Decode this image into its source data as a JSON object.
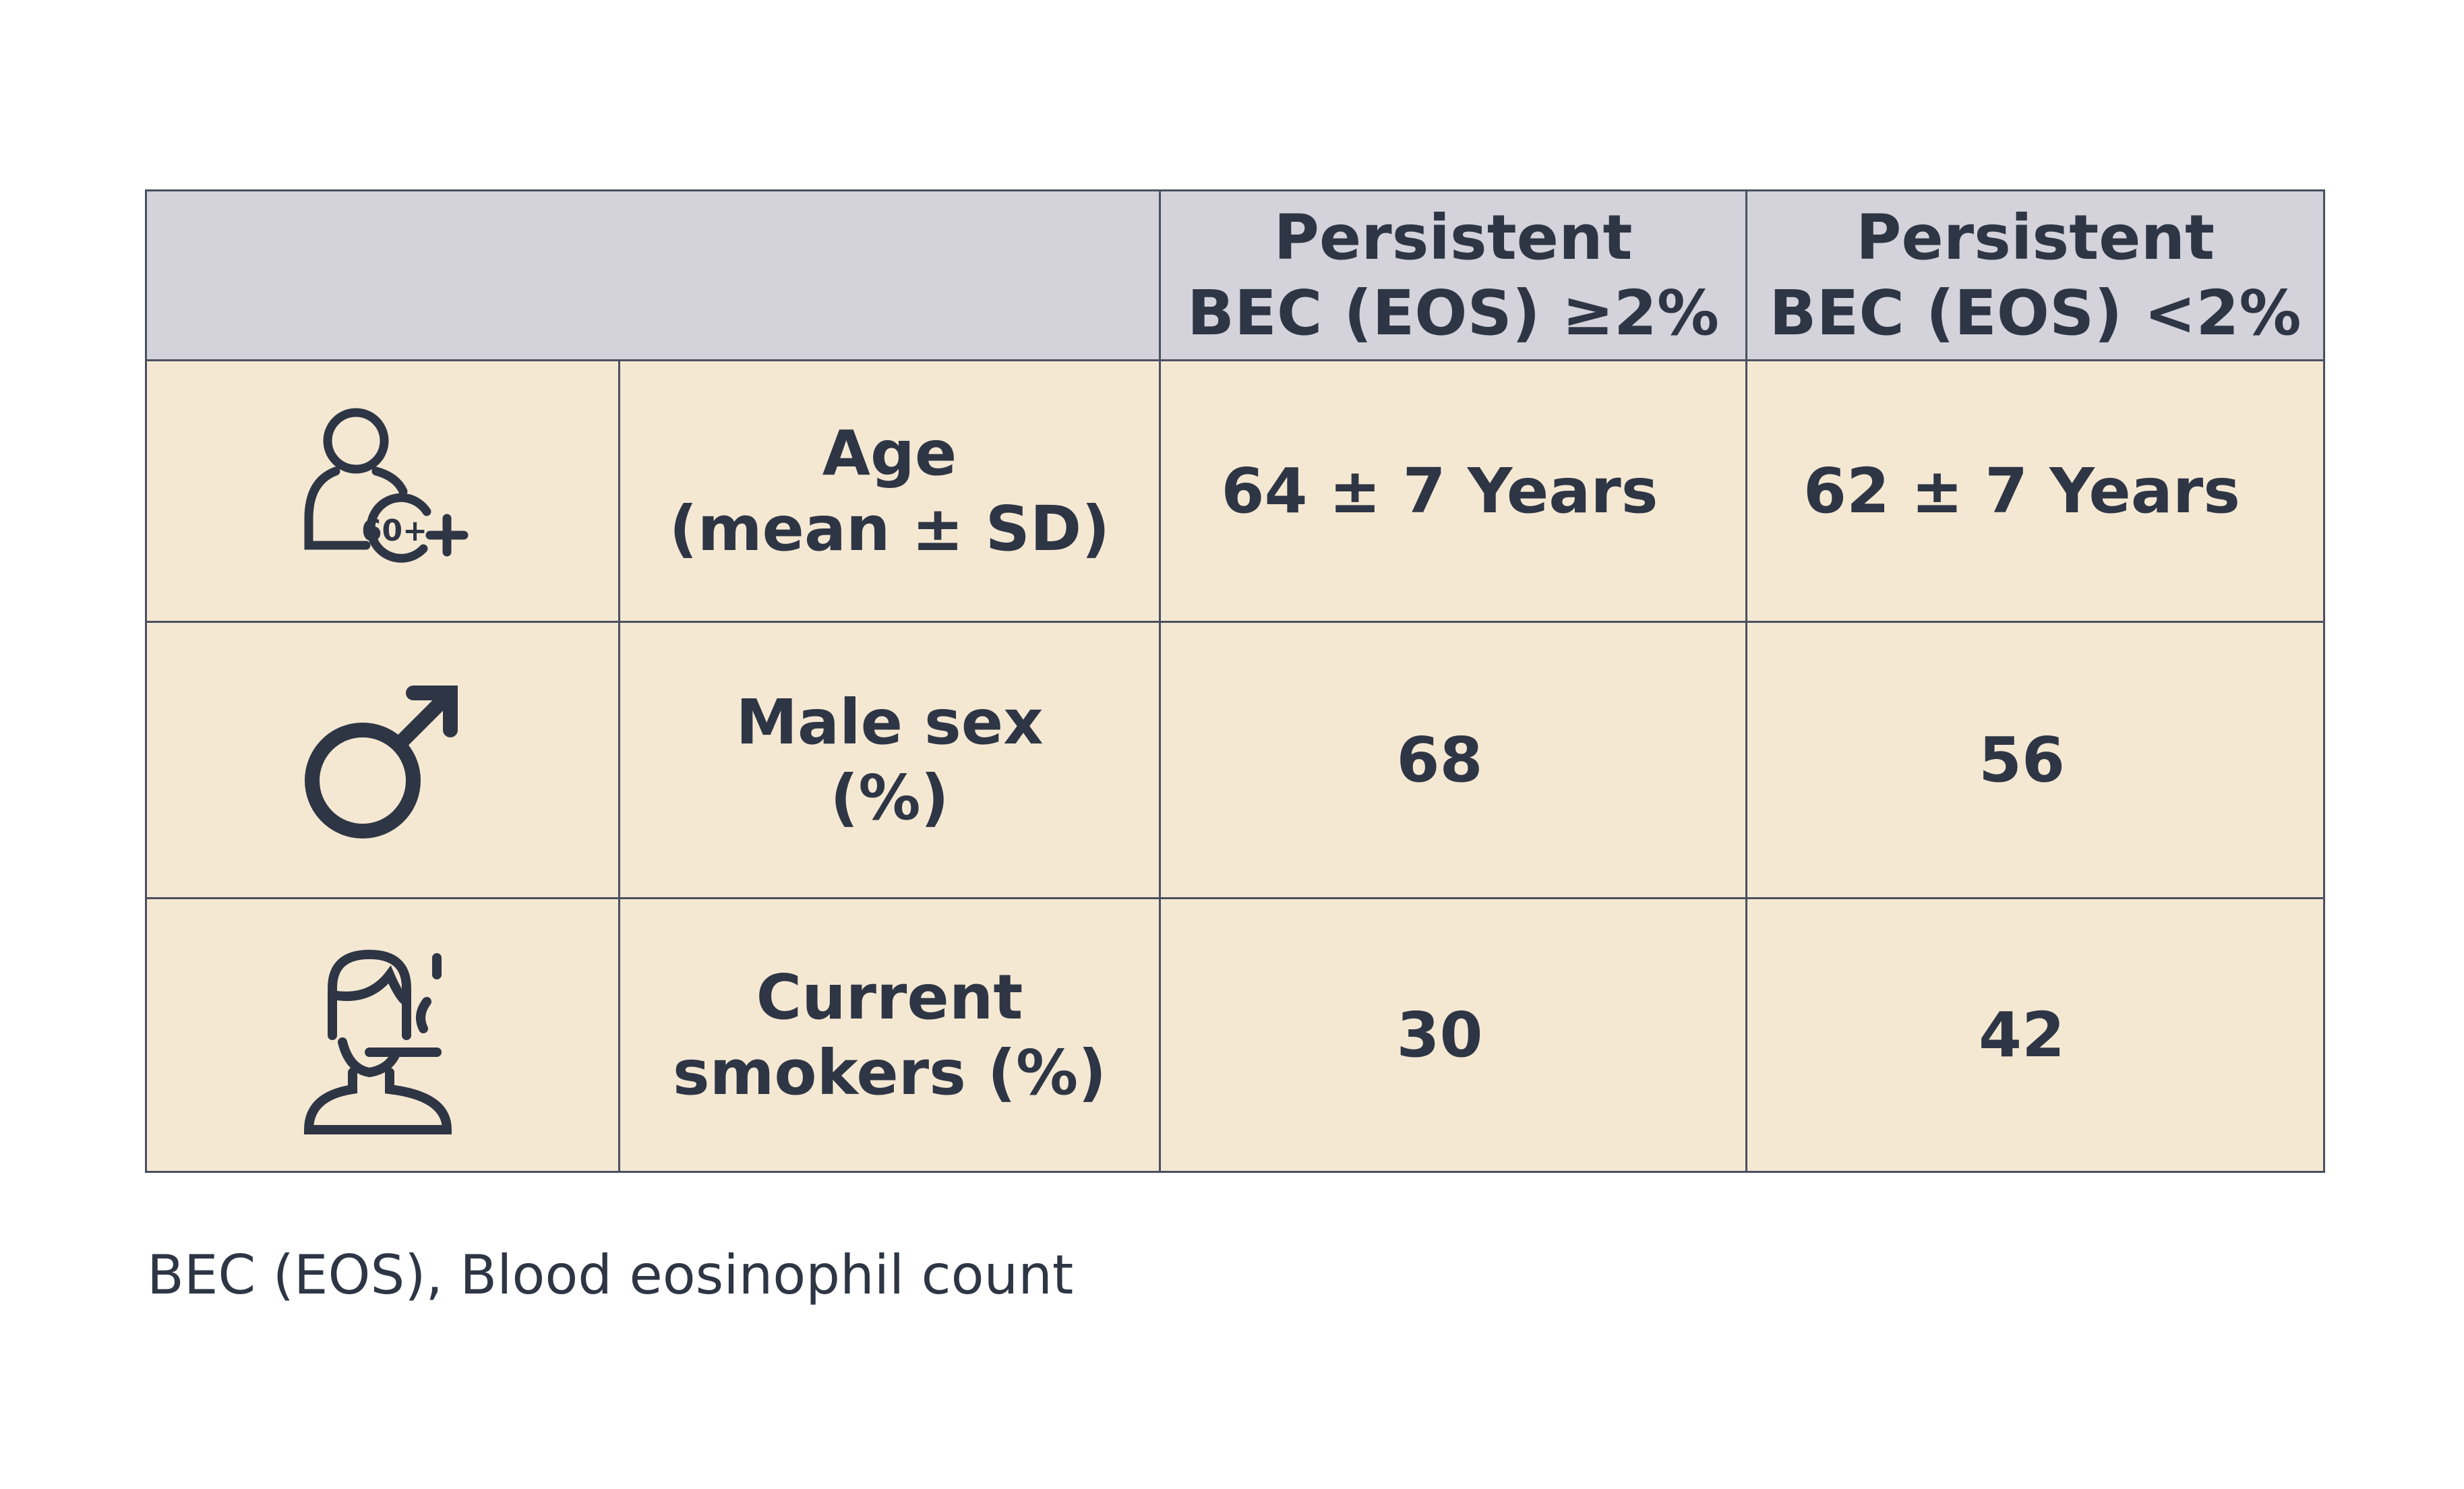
{
  "table": {
    "header": [
      "Persistent\nBEC (EOS) ≥2%",
      "Persistent\nBEC (EOS) <2%"
    ],
    "rows": [
      {
        "icon_text": "60+",
        "label": "Age\n(mean ± SD)",
        "values": [
          "64 ± 7 Years",
          "62 ± 7 Years"
        ]
      },
      {
        "label": "Male sex\n(%)",
        "values": [
          68,
          56
        ]
      },
      {
        "label": "Current\nsmokers (%)",
        "values": [
          30,
          42
        ]
      }
    ]
  },
  "footnote": "BEC (EOS), Blood eosinophil count"
}
